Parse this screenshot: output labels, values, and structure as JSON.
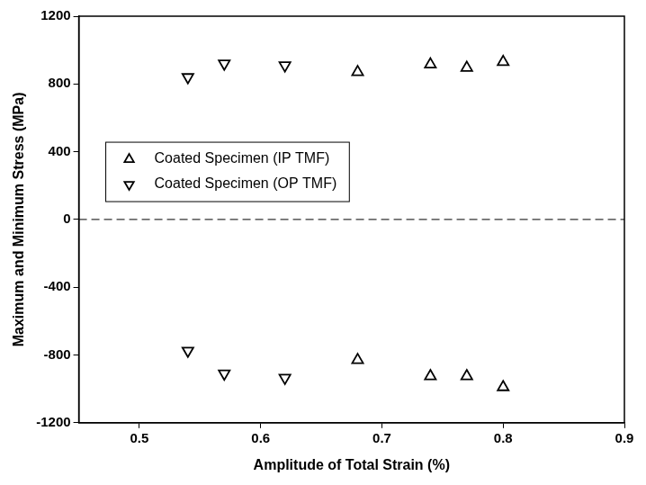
{
  "chart_data": {
    "type": "scatter",
    "x_label": "Amplitude of Total Strain (%)",
    "y_label": "Maximum and Minimum Stress (MPa)",
    "series": [
      {
        "name": "Coated Specimen (IP TMF)",
        "color": "#000000",
        "marker": "triangle_up",
        "x": [
          0.68,
          0.74,
          0.77,
          0.8,
          0.68,
          0.74,
          0.77,
          0.8
        ],
        "values": [
          870,
          915,
          895,
          930,
          -830,
          -925,
          -925,
          -990
        ]
      },
      {
        "name": "Coated Specimen (OP TMF)",
        "color": "#000000",
        "marker": "triangle_down",
        "x": [
          0.54,
          0.57,
          0.62,
          0.54,
          0.57,
          0.62
        ],
        "values": [
          840,
          920,
          910,
          -775,
          -910,
          -935
        ]
      }
    ],
    "reference_line": {
      "y": 0,
      "line_style": "dashed"
    },
    "xlim": [
      0.45,
      0.9
    ],
    "xticks": [
      0.5,
      0.6,
      0.7,
      0.8,
      0.9
    ],
    "ylim": [
      -1200,
      1200
    ],
    "yticks": [
      -1200,
      -800,
      -400,
      0,
      400,
      800,
      1200
    ],
    "grid": false,
    "legend": "center left"
  }
}
